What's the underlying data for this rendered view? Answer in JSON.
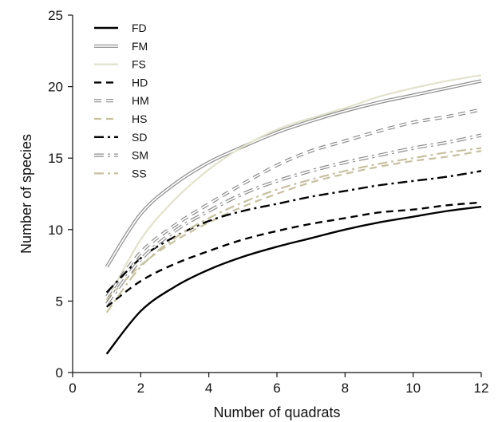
{
  "chart_data": {
    "type": "line",
    "title": "",
    "xlabel": "Number of quadrats",
    "ylabel": "Number of species",
    "xlim": [
      0,
      12
    ],
    "ylim": [
      0,
      25
    ],
    "xticks": [
      0,
      2,
      4,
      6,
      8,
      10,
      12
    ],
    "yticks": [
      0,
      5,
      10,
      15,
      20,
      25
    ],
    "grid": false,
    "legend_position": "top-left",
    "x": [
      1,
      2,
      3,
      4,
      5,
      6,
      7,
      8,
      9,
      10,
      11,
      12
    ],
    "series": [
      {
        "name": "FD",
        "color": "#000000",
        "style": "solid",
        "values": [
          1.3,
          4.3,
          6.0,
          7.2,
          8.1,
          8.8,
          9.4,
          10.0,
          10.5,
          10.9,
          11.3,
          11.6
        ]
      },
      {
        "name": "FM",
        "color": "#8c8c8c",
        "style": "double",
        "values": [
          7.4,
          11.1,
          13.2,
          14.7,
          15.8,
          16.8,
          17.6,
          18.3,
          18.9,
          19.4,
          19.9,
          20.4
        ]
      },
      {
        "name": "FS",
        "color": "#e2e2cc",
        "style": "solid",
        "values": [
          5.0,
          9.3,
          12.1,
          14.2,
          15.8,
          17.0,
          17.8,
          18.5,
          19.3,
          19.9,
          20.4,
          20.8
        ]
      },
      {
        "name": "HD",
        "color": "#000000",
        "style": "dashed",
        "values": [
          4.6,
          6.4,
          7.6,
          8.5,
          9.3,
          9.9,
          10.4,
          10.8,
          11.2,
          11.4,
          11.7,
          11.9
        ]
      },
      {
        "name": "HM",
        "color": "#8c8c8c",
        "style": "double-dashed",
        "values": [
          5.3,
          8.4,
          10.3,
          11.8,
          13.2,
          14.5,
          15.5,
          16.2,
          16.9,
          17.5,
          17.9,
          18.4
        ]
      },
      {
        "name": "HS",
        "color": "#c6c19f",
        "style": "dashed",
        "values": [
          5.1,
          7.5,
          9.2,
          10.5,
          11.6,
          12.5,
          13.3,
          13.9,
          14.4,
          14.8,
          15.1,
          15.5
        ]
      },
      {
        "name": "SD",
        "color": "#000000",
        "style": "dash-dot",
        "values": [
          5.6,
          8.0,
          9.5,
          10.6,
          11.3,
          11.8,
          12.3,
          12.7,
          13.1,
          13.4,
          13.7,
          14.1
        ]
      },
      {
        "name": "SM",
        "color": "#8c8c8c",
        "style": "double-dash-dot",
        "values": [
          4.8,
          7.9,
          9.9,
          11.3,
          12.5,
          13.4,
          14.1,
          14.7,
          15.2,
          15.7,
          16.1,
          16.6
        ]
      },
      {
        "name": "SS",
        "color": "#c6c19f",
        "style": "dash-dot",
        "values": [
          4.2,
          7.4,
          9.4,
          10.8,
          11.9,
          12.8,
          13.5,
          14.1,
          14.6,
          15.0,
          15.4,
          15.7
        ]
      }
    ]
  }
}
